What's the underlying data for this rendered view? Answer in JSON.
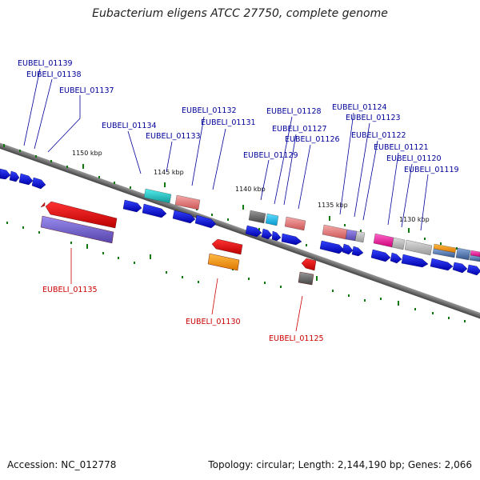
{
  "title": "Eubacterium eligens ATCC 27750, complete genome",
  "footer": {
    "accession": "Accession: NC_012778",
    "stats": "Topology: circular; Length: 2,144,190 bp; Genes: 2,066"
  },
  "scale_labels": [
    "1150 kbp",
    "1145 kbp",
    "1140 kbp",
    "1135 kbp",
    "1130 kbp"
  ],
  "gene_labels_top": [
    "EUBELI_01139",
    "EUBELI_01138",
    "EUBELI_01137",
    "EUBELI_01134",
    "EUBELI_01133",
    "EUBELI_01132",
    "EUBELI_01131",
    "EUBELI_01128",
    "EUBELI_01127",
    "EUBELI_01126",
    "EUBELI_01129",
    "EUBELI_01124",
    "EUBELI_01123",
    "EUBELI_01122",
    "EUBELI_01121",
    "EUBELI_01120",
    "EUBELI_01119"
  ],
  "gene_labels_bottom": [
    "EUBELI_01135",
    "EUBELI_01130",
    "EUBELI_01125"
  ],
  "colors": {
    "forward_cds": "#0000dd",
    "reverse_cds": "#ee0000",
    "top_label": "#000099",
    "bottom_label": "#cc0000",
    "backbone": "#808080",
    "tick": "#117711"
  }
}
